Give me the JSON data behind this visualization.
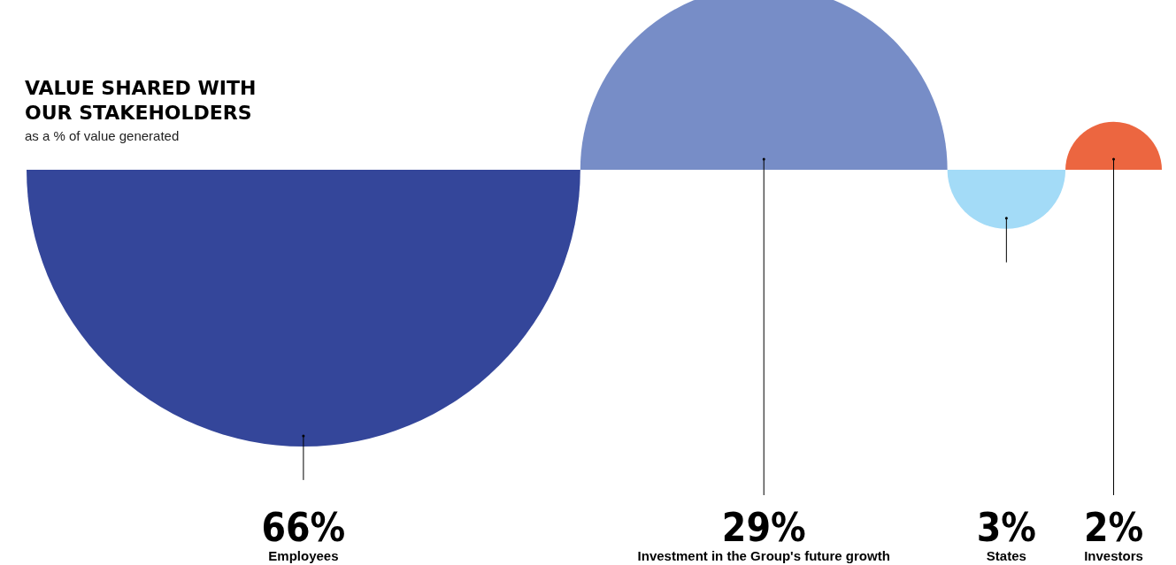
{
  "chart_data": {
    "type": "other",
    "title": "VALUE SHARED WITH\nOUR STAKEHOLDERS",
    "subtitle": "as a % of value generated",
    "categories": [
      "Employees",
      "Investment in the Group's future growth",
      "States",
      "Investors"
    ],
    "values": [
      66,
      29,
      3,
      2
    ],
    "value_labels": [
      "66%",
      "29%",
      "3%",
      "2%"
    ],
    "colors": [
      "#34469a",
      "#778dc7",
      "#a3dbf7",
      "#ec6640"
    ]
  }
}
